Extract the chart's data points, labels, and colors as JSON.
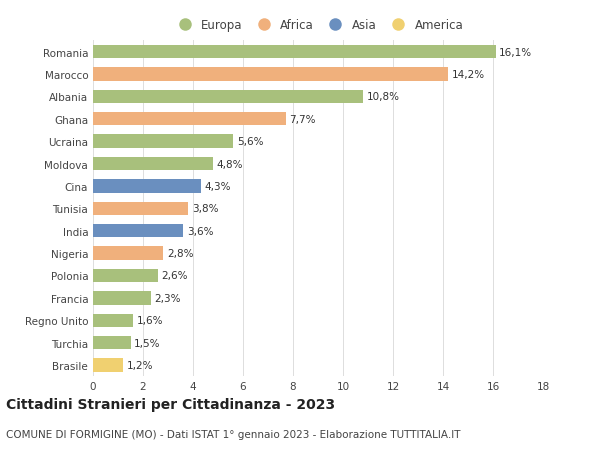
{
  "countries": [
    "Romania",
    "Marocco",
    "Albania",
    "Ghana",
    "Ucraina",
    "Moldova",
    "Cina",
    "Tunisia",
    "India",
    "Nigeria",
    "Polonia",
    "Francia",
    "Regno Unito",
    "Turchia",
    "Brasile"
  ],
  "values": [
    16.1,
    14.2,
    10.8,
    7.7,
    5.6,
    4.8,
    4.3,
    3.8,
    3.6,
    2.8,
    2.6,
    2.3,
    1.6,
    1.5,
    1.2
  ],
  "labels": [
    "16,1%",
    "14,2%",
    "10,8%",
    "7,7%",
    "5,6%",
    "4,8%",
    "4,3%",
    "3,8%",
    "3,6%",
    "2,8%",
    "2,6%",
    "2,3%",
    "1,6%",
    "1,5%",
    "1,2%"
  ],
  "continents": [
    "Europa",
    "Africa",
    "Europa",
    "Africa",
    "Europa",
    "Europa",
    "Asia",
    "Africa",
    "Asia",
    "Africa",
    "Europa",
    "Europa",
    "Europa",
    "Europa",
    "America"
  ],
  "continent_colors": {
    "Europa": "#a8c07c",
    "Africa": "#f0b07c",
    "Asia": "#6a8fbf",
    "America": "#f0d070"
  },
  "legend_order": [
    "Europa",
    "Africa",
    "Asia",
    "America"
  ],
  "title": "Cittadini Stranieri per Cittadinanza - 2023",
  "subtitle": "COMUNE DI FORMIGINE (MO) - Dati ISTAT 1° gennaio 2023 - Elaborazione TUTTITALIA.IT",
  "xlim": [
    0,
    18
  ],
  "xticks": [
    0,
    2,
    4,
    6,
    8,
    10,
    12,
    14,
    16,
    18
  ],
  "background_color": "#ffffff",
  "grid_color": "#dddddd",
  "bar_height": 0.6,
  "title_fontsize": 10,
  "subtitle_fontsize": 7.5,
  "label_fontsize": 7.5,
  "tick_fontsize": 7.5,
  "legend_fontsize": 8.5
}
